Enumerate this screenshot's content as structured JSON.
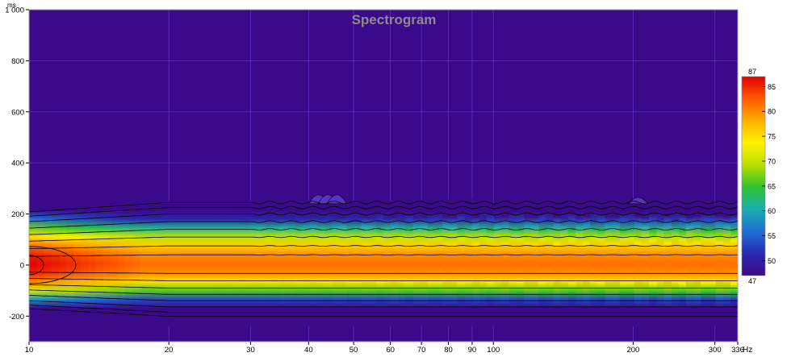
{
  "chart_data": {
    "type": "heatmap",
    "title": "Spectrogram",
    "xlabel": "",
    "x_unit": "Hz",
    "ylabel": "",
    "y_unit": "ms",
    "x_scale": "log",
    "xlim": [
      10,
      336
    ],
    "ylim": [
      -300,
      1000
    ],
    "x_ticks": [
      10,
      20,
      30,
      40,
      50,
      60,
      70,
      80,
      90,
      100,
      200,
      300,
      336
    ],
    "x_tick_labels": [
      "10",
      "20",
      "30",
      "40",
      "50",
      "60",
      "70",
      "80",
      "90",
      "100",
      "200",
      "300",
      "336"
    ],
    "y_ticks": [
      -200,
      0,
      200,
      400,
      600,
      800,
      1000
    ],
    "y_tick_labels": [
      "-200",
      "0",
      "200",
      "400",
      "600",
      "800",
      "1 000"
    ],
    "grid": true,
    "colorscale": {
      "min": 47,
      "max": 87,
      "min_label": "47",
      "max_label": "87",
      "ticks": [
        50,
        55,
        60,
        65,
        70,
        75,
        80,
        85
      ],
      "tick_labels": [
        "50",
        "55",
        "60",
        "65",
        "70",
        "75",
        "80",
        "85"
      ],
      "stops": [
        "#3b0a8a",
        "#2a2ab0",
        "#1f6fd6",
        "#19aeb0",
        "#2fc22f",
        "#b8e000",
        "#fff200",
        "#ffb000",
        "#ff5a00",
        "#e00000"
      ]
    },
    "background_color": "#3b0a8a",
    "contour_color": "#000000",
    "peak": {
      "x": 10,
      "y": 0,
      "level": 87
    },
    "time_extent_ms": [
      -240,
      250
    ],
    "high_decay_peaks_hz": [
      42,
      44,
      46,
      205
    ]
  }
}
